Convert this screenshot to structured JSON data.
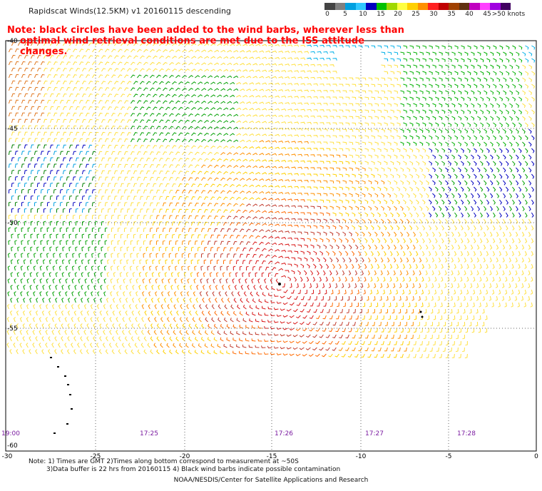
{
  "title": "Rapidscat Winds(12.5KM) v1 20160115 descending",
  "legend": {
    "colors": [
      "#444444",
      "#808080",
      "#00a0e0",
      "#30c8ff",
      "#0000c0",
      "#00c000",
      "#a0d800",
      "#ffff40",
      "#ffd000",
      "#ff9000",
      "#ff2020",
      "#c00000",
      "#a04000",
      "#603010",
      "#c000c0",
      "#ff40ff",
      "#a000e0",
      "#400060"
    ],
    "labels": [
      "0",
      "5",
      "10",
      "15",
      "20",
      "25",
      "30",
      "35",
      "40",
      "45",
      ">50 knots"
    ]
  },
  "note": {
    "line1": "Note: black circles have been added to the wind barbs, wherever less than",
    "line2": "optimal wind retrieval conditions are met due to the ISS attitude changes."
  },
  "map": {
    "lat_labels": [
      "-40",
      "-45",
      "-50",
      "-55",
      "-60"
    ],
    "lon_labels": [
      "-30",
      "-25",
      "-20",
      "-15",
      "-10",
      "-5",
      "0"
    ],
    "time_labels": [
      "19:00",
      "17:25",
      "17:26",
      "17:27",
      "17:28"
    ]
  },
  "footer": {
    "line1": "Note:  1) Times are GMT  2)Times along bottom correspond to measurement at ~50S",
    "line2": "3)Data buffer is 22 hrs from 20160115  4) Black wind barbs indicate possible contamination",
    "credit": "NOAA/NESDIS/Center for Satellite Applications and Research"
  }
}
